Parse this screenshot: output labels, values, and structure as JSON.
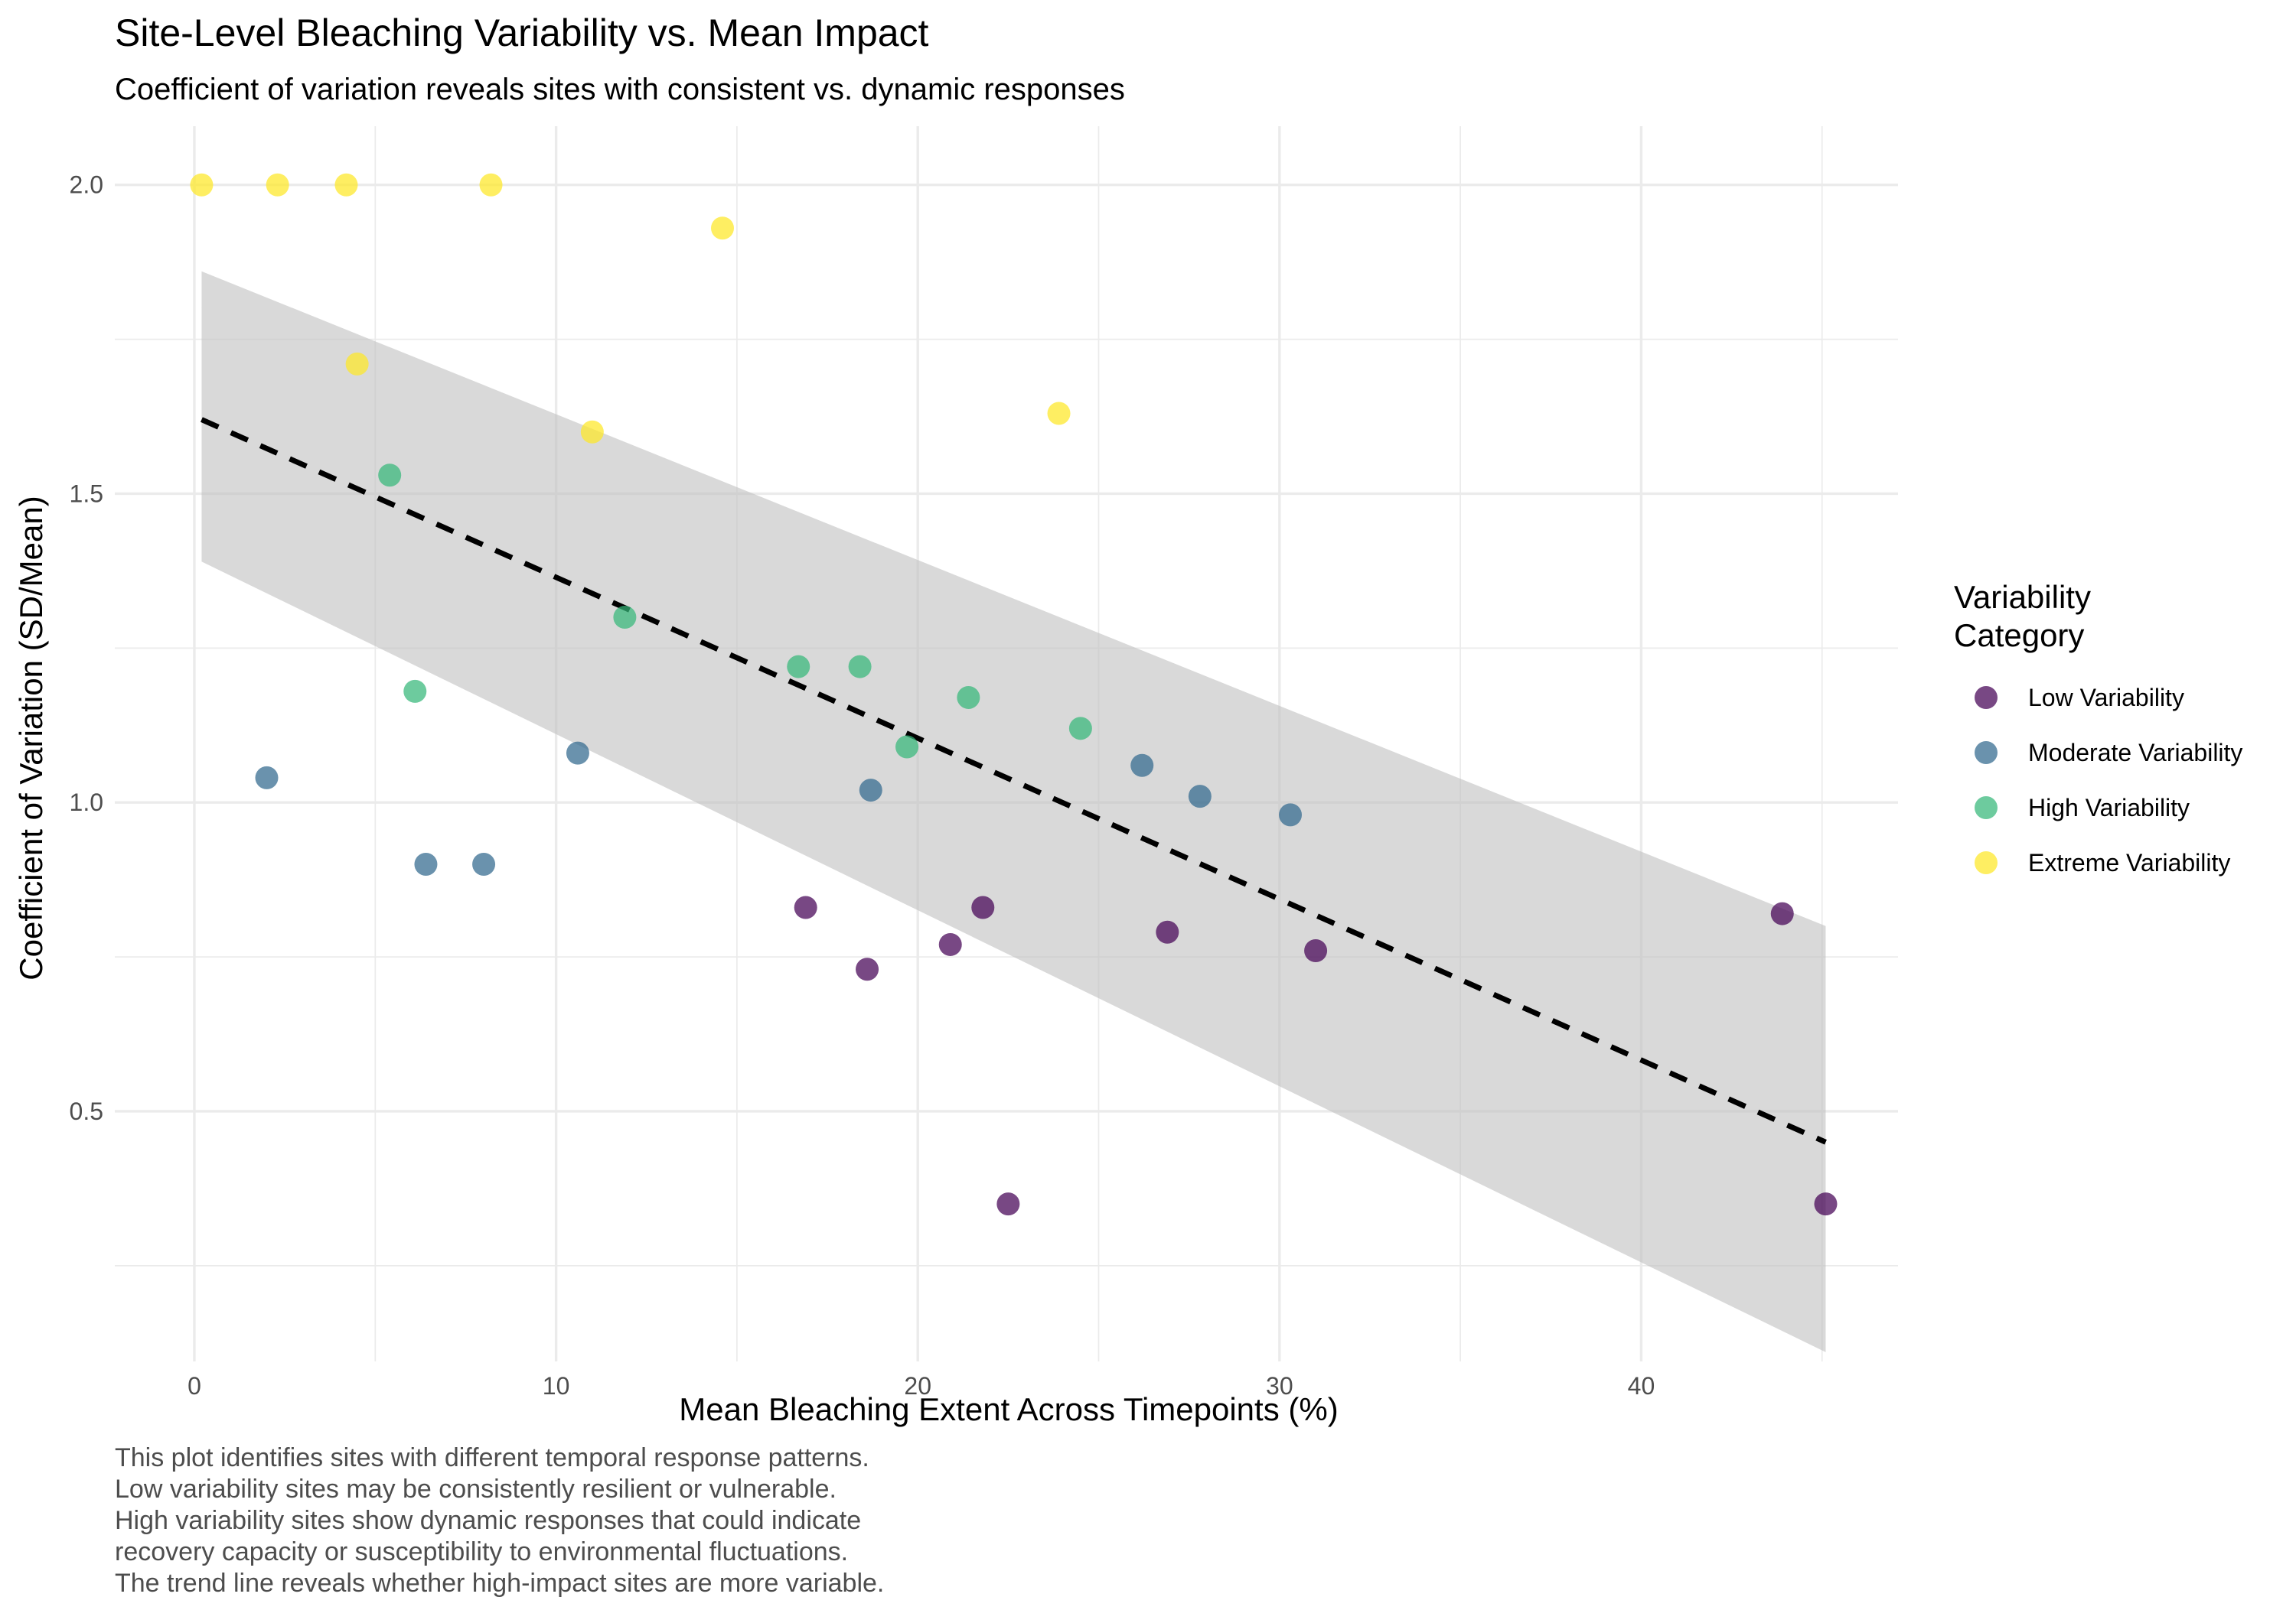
{
  "chart_data": {
    "type": "scatter",
    "title": "Site-Level Bleaching Variability vs. Mean Impact",
    "subtitle": "Coefficient of variation reveals sites with consistent vs. dynamic responses",
    "xlabel": "Mean Bleaching Extent Across Timepoints (%)",
    "ylabel": "Coefficient of Variation (SD/Mean)",
    "caption": [
      "This plot identifies sites with different temporal response patterns.",
      "Low variability sites may be consistently resilient or vulnerable.",
      "High variability sites show dynamic responses that could indicate",
      "recovery capacity or susceptibility to environmental fluctuations.",
      "The trend line reveals whether high-impact sites are more variable."
    ],
    "xlim": [
      -2.2,
      47.1
    ],
    "ylim": [
      0.095,
      2.095
    ],
    "x_ticks": [
      0,
      10,
      20,
      30,
      40
    ],
    "x_tick_labels": [
      "0",
      "10",
      "20",
      "30",
      "40"
    ],
    "y_ticks": [
      0.5,
      1.0,
      1.5,
      2.0
    ],
    "y_tick_labels": [
      "0.5",
      "1.0",
      "1.5",
      "2.0"
    ],
    "grid": true,
    "legend": {
      "title": [
        "Variability",
        "Category"
      ],
      "position": "right"
    },
    "trend": {
      "style": "dashed",
      "color": "#000000",
      "x": [
        0.2,
        45.1
      ],
      "y": [
        1.62,
        0.45
      ]
    },
    "confidence_band": {
      "color": "#bfbfbf",
      "x": [
        0.2,
        45.1
      ],
      "lower": [
        1.39,
        0.11
      ],
      "upper": [
        1.86,
        0.8
      ]
    },
    "series": [
      {
        "name": "Low Variability",
        "color": "#440154",
        "points": [
          {
            "x": 16.9,
            "y": 0.83
          },
          {
            "x": 18.6,
            "y": 0.73
          },
          {
            "x": 20.9,
            "y": 0.77
          },
          {
            "x": 21.8,
            "y": 0.83
          },
          {
            "x": 22.5,
            "y": 0.35
          },
          {
            "x": 26.9,
            "y": 0.79
          },
          {
            "x": 31.0,
            "y": 0.76
          },
          {
            "x": 43.9,
            "y": 0.82
          },
          {
            "x": 45.1,
            "y": 0.35
          }
        ]
      },
      {
        "name": "Moderate Variability",
        "color": "#31688e",
        "points": [
          {
            "x": 2.0,
            "y": 1.04
          },
          {
            "x": 6.4,
            "y": 0.9
          },
          {
            "x": 8.0,
            "y": 0.9
          },
          {
            "x": 10.6,
            "y": 1.08
          },
          {
            "x": 18.7,
            "y": 1.02
          },
          {
            "x": 26.2,
            "y": 1.06
          },
          {
            "x": 27.8,
            "y": 1.01
          },
          {
            "x": 30.3,
            "y": 0.98
          }
        ]
      },
      {
        "name": "High Variability",
        "color": "#35b779",
        "points": [
          {
            "x": 5.4,
            "y": 1.53
          },
          {
            "x": 6.1,
            "y": 1.18
          },
          {
            "x": 11.9,
            "y": 1.3
          },
          {
            "x": 16.7,
            "y": 1.22
          },
          {
            "x": 18.4,
            "y": 1.22
          },
          {
            "x": 19.7,
            "y": 1.09
          },
          {
            "x": 21.4,
            "y": 1.17
          },
          {
            "x": 24.5,
            "y": 1.12
          }
        ]
      },
      {
        "name": "Extreme Variability",
        "color": "#fde725",
        "points": [
          {
            "x": 0.2,
            "y": 2.0
          },
          {
            "x": 2.3,
            "y": 2.0
          },
          {
            "x": 4.2,
            "y": 2.0
          },
          {
            "x": 8.2,
            "y": 2.0
          },
          {
            "x": 4.5,
            "y": 1.71
          },
          {
            "x": 11.0,
            "y": 1.6
          },
          {
            "x": 14.6,
            "y": 1.93
          },
          {
            "x": 23.9,
            "y": 1.63
          }
        ]
      }
    ]
  }
}
